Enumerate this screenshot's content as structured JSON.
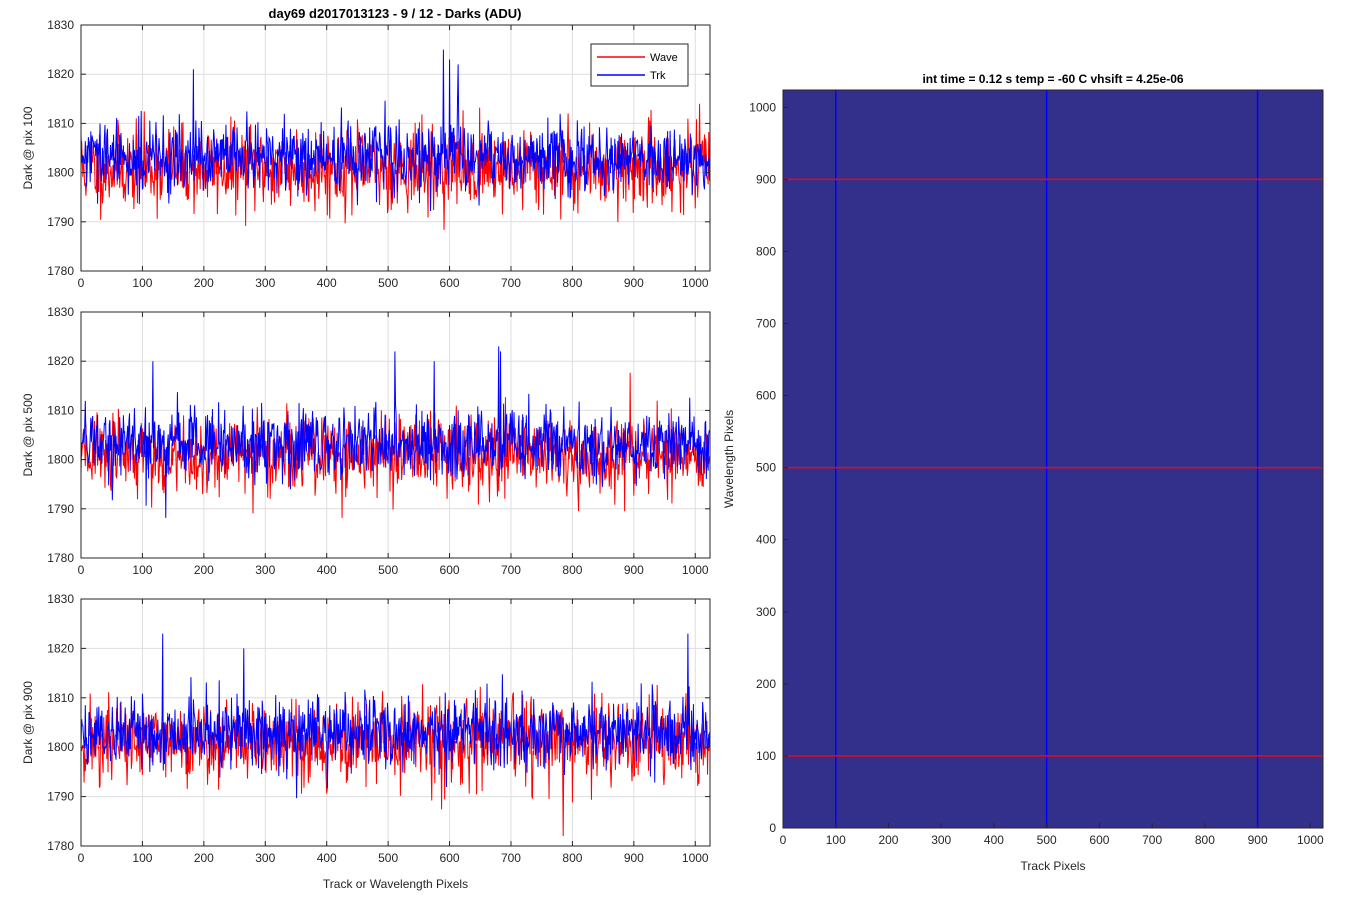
{
  "figure": {
    "title": "day69 d2017013123 - 9 / 12 - Darks (ADU)",
    "right_title": "int time = 0.12 s   temp = -60 C   vhsift = 4.25e-06"
  },
  "legend": {
    "entries": [
      "Wave",
      "Trk"
    ],
    "placement": "top-right"
  },
  "colors": {
    "wave": "#ff0000",
    "trk": "#0000ff",
    "image_bg": "#33308c",
    "grid": "#dedede",
    "axis": "#262626"
  },
  "chart_data": [
    {
      "type": "line",
      "ylabel": "Dark @ pix 100",
      "xlabel": "",
      "xlim": [
        0,
        1024
      ],
      "ylim": [
        1780,
        1830
      ],
      "xticks": [
        0,
        100,
        200,
        300,
        400,
        500,
        600,
        700,
        800,
        900,
        1000
      ],
      "yticks": [
        1780,
        1790,
        1800,
        1810,
        1820,
        1830
      ],
      "grid": true,
      "series": [
        {
          "name": "Wave",
          "color": "#ff0000",
          "mean": 1801,
          "noise": 4.2,
          "seed": 11,
          "n": 1024
        },
        {
          "name": "Trk",
          "color": "#0000ff",
          "mean": 1803,
          "noise": 3.6,
          "seed": 29,
          "n": 1024
        }
      ],
      "annotations": {
        "trk_spikes": [
          [
            183,
            1821
          ],
          [
            590,
            1825
          ],
          [
            600,
            1823
          ],
          [
            614,
            1822
          ]
        ]
      }
    },
    {
      "type": "line",
      "ylabel": "Dark @ pix 500",
      "xlabel": "",
      "xlim": [
        0,
        1024
      ],
      "ylim": [
        1780,
        1830
      ],
      "xticks": [
        0,
        100,
        200,
        300,
        400,
        500,
        600,
        700,
        800,
        900,
        1000
      ],
      "yticks": [
        1780,
        1790,
        1800,
        1810,
        1820,
        1830
      ],
      "grid": true,
      "series": [
        {
          "name": "Wave",
          "color": "#ff0000",
          "mean": 1801,
          "noise": 4.0,
          "seed": 43,
          "n": 1024
        },
        {
          "name": "Trk",
          "color": "#0000ff",
          "mean": 1803,
          "noise": 3.7,
          "seed": 57,
          "n": 1024
        }
      ],
      "annotations": {
        "trk_spikes": [
          [
            117,
            1820
          ],
          [
            511,
            1822
          ],
          [
            680,
            1823
          ],
          [
            683,
            1822
          ],
          [
            575,
            1820
          ]
        ]
      }
    },
    {
      "type": "line",
      "ylabel": "Dark @ pix 900",
      "xlabel": "Track or Wavelength Pixels",
      "xlim": [
        0,
        1024
      ],
      "ylim": [
        1780,
        1830
      ],
      "xticks": [
        0,
        100,
        200,
        300,
        400,
        500,
        600,
        700,
        800,
        900,
        1000
      ],
      "yticks": [
        1780,
        1790,
        1800,
        1810,
        1820,
        1830
      ],
      "grid": true,
      "series": [
        {
          "name": "Wave",
          "color": "#ff0000",
          "mean": 1801,
          "noise": 4.3,
          "seed": 71,
          "n": 1024
        },
        {
          "name": "Trk",
          "color": "#0000ff",
          "mean": 1803,
          "noise": 3.7,
          "seed": 89,
          "n": 1024
        }
      ],
      "annotations": {
        "trk_spikes": [
          [
            133,
            1823
          ],
          [
            988,
            1823
          ],
          [
            265,
            1820
          ]
        ],
        "wave_dips": [
          [
            785,
            1782
          ]
        ]
      }
    },
    {
      "type": "heatmap",
      "title": "int time = 0.12 s   temp = -60 C   vhsift = 4.25e-06",
      "xlabel": "Track Pixels",
      "ylabel": "Wavelength Pixels",
      "xlim": [
        0,
        1024
      ],
      "ylim": [
        0,
        1024
      ],
      "xticks": [
        0,
        100,
        200,
        300,
        400,
        500,
        600,
        700,
        800,
        900,
        1000
      ],
      "yticks": [
        0,
        100,
        200,
        300,
        400,
        500,
        600,
        700,
        800,
        900,
        1000
      ],
      "grid": false,
      "vertical_lines": [
        100,
        500,
        900
      ],
      "horizontal_lines": [
        100,
        500,
        900
      ],
      "vertical_line_color": "#0000ff",
      "horizontal_line_color": "#ff0000"
    }
  ]
}
